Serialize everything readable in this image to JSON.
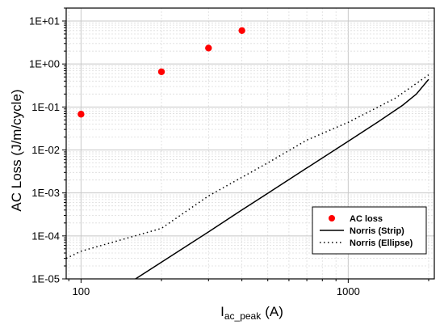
{
  "chart_data": {
    "type": "scatter",
    "x_scale": "log",
    "y_scale": "log",
    "xlim": [
      88,
      2100
    ],
    "ylim": [
      1e-05,
      20
    ],
    "grid": true,
    "legend_position": "bottom-right",
    "ylabel": "AC Loss (J/m/cycle)",
    "xlabel_main": "I",
    "xlabel_sub": "ac_peak",
    "xlabel_unit": "(A)",
    "x_ticks": [
      {
        "value": 100,
        "label": "100"
      },
      {
        "value": 1000,
        "label": "1000"
      }
    ],
    "y_ticks": [
      {
        "value": 1e-05,
        "label": "1E-05"
      },
      {
        "value": 0.0001,
        "label": "1E-04"
      },
      {
        "value": 0.001,
        "label": "1E-03"
      },
      {
        "value": 0.01,
        "label": "1E-02"
      },
      {
        "value": 0.1,
        "label": "1E-01"
      },
      {
        "value": 1,
        "label": "1E+00"
      },
      {
        "value": 10,
        "label": "1E+01"
      }
    ],
    "series": [
      {
        "name": "AC loss",
        "kind": "markers",
        "color": "#ff0000",
        "x": [
          100,
          200,
          300,
          400
        ],
        "y": [
          0.068,
          0.66,
          2.35,
          6.0
        ]
      },
      {
        "name": "Norris (Strip)",
        "kind": "solid-line",
        "color": "#000000",
        "x": [
          160,
          200,
          300,
          400,
          500,
          700,
          1000,
          1300,
          1600,
          1800,
          2000
        ],
        "y": [
          1e-05,
          2.44e-05,
          0.000124,
          0.0004,
          0.00098,
          0.0038,
          0.016,
          0.046,
          0.11,
          0.2,
          0.44
        ]
      },
      {
        "name": "Norris (Ellipse)",
        "kind": "dotted-line",
        "color": "#000000",
        "x": [
          88,
          100,
          200,
          300,
          500,
          700,
          1000,
          1500,
          2000
        ],
        "y": [
          3e-05,
          4.4e-05,
          0.00015,
          0.00085,
          0.005,
          0.017,
          0.044,
          0.16,
          0.56
        ]
      }
    ]
  }
}
